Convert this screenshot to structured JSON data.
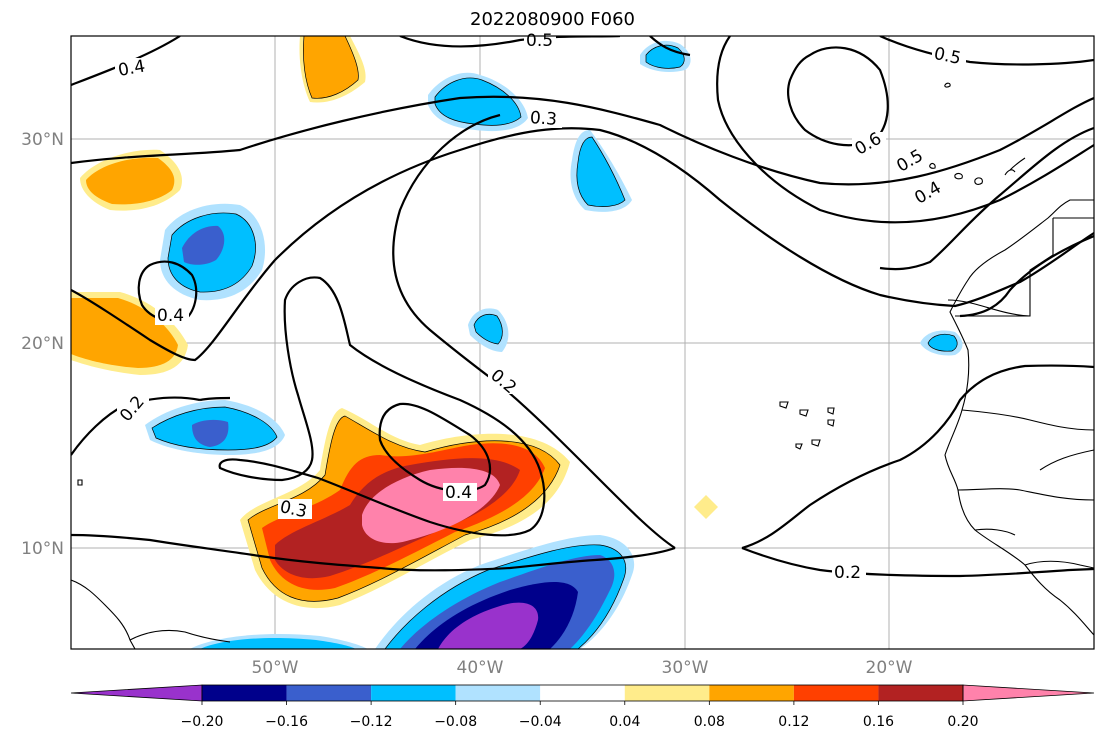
{
  "title": "2022080900 F060",
  "map": {
    "lat_labels": [
      "30°N",
      "20°N",
      "10°N"
    ],
    "lon_labels": [
      "50°W",
      "40°W",
      "30°W",
      "20°W"
    ],
    "contour_labels": [
      "0.4",
      "0.5",
      "0.3",
      "0.5",
      "0.6",
      "0.5",
      "0.4",
      "0.4",
      "0.2",
      "0.2",
      "0.4",
      "0.3",
      "0.2"
    ]
  },
  "colorbar": {
    "levels": [
      "−0.20",
      "−0.16",
      "−0.12",
      "−0.08",
      "−0.04",
      "0.04",
      "0.08",
      "0.12",
      "0.16",
      "0.20"
    ],
    "colors": [
      "#9932CC",
      "#00008B",
      "#3A5FCD",
      "#00BFFF",
      "#B0E2FF",
      "#FFFFFF",
      "#FFEC8B",
      "#FFA500",
      "#FF4000",
      "#B22222",
      "#FF82AB"
    ]
  }
}
